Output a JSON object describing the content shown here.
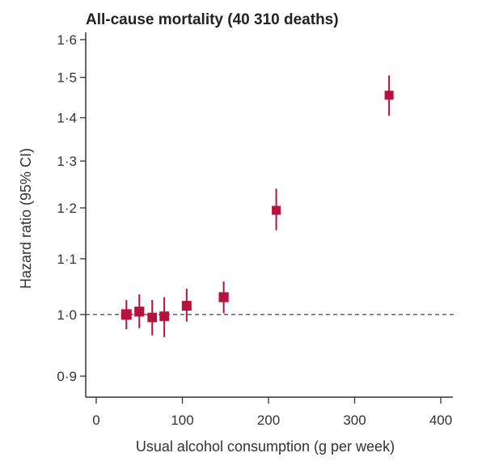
{
  "chart_data": {
    "type": "scatter",
    "title": "All-cause mortality (40 310 deaths)",
    "xlabel": "Usual alcohol consumption (g per week)",
    "ylabel": "Hazard ratio (95% CI)",
    "x_ticks": [
      0,
      100,
      200,
      300,
      400
    ],
    "x_tick_labels": [
      "0",
      "100",
      "200",
      "300",
      "400"
    ],
    "y_ticks": [
      0.9,
      1.0,
      1.1,
      1.2,
      1.3,
      1.4,
      1.5,
      1.6
    ],
    "y_tick_labels": [
      "0·9",
      "1·0",
      "1·1",
      "1·2",
      "1·3",
      "1·4",
      "1·5",
      "1·6"
    ],
    "xlim": [
      0,
      410
    ],
    "ylim": [
      0.87,
      1.6
    ],
    "y_scale": "log",
    "reference_line": {
      "y": 1.0,
      "style": "dashed"
    },
    "marker_color": "#b5123e",
    "points": [
      {
        "x": 35,
        "hr": 1.0,
        "lo": 0.975,
        "hi": 1.025,
        "weight": 1.0
      },
      {
        "x": 50,
        "hr": 1.005,
        "lo": 0.977,
        "hi": 1.035,
        "weight": 0.85
      },
      {
        "x": 65,
        "hr": 0.995,
        "lo": 0.965,
        "hi": 1.025,
        "weight": 0.75
      },
      {
        "x": 79,
        "hr": 0.997,
        "lo": 0.962,
        "hi": 1.03,
        "weight": 0.75
      },
      {
        "x": 105,
        "hr": 1.015,
        "lo": 0.988,
        "hi": 1.045,
        "weight": 0.8
      },
      {
        "x": 148,
        "hr": 1.03,
        "lo": 1.002,
        "hi": 1.058,
        "weight": 0.85
      },
      {
        "x": 209,
        "hr": 1.195,
        "lo": 1.155,
        "hi": 1.24,
        "weight": 0.6
      },
      {
        "x": 340,
        "hr": 1.455,
        "lo": 1.405,
        "hi": 1.505,
        "weight": 0.6
      }
    ]
  }
}
